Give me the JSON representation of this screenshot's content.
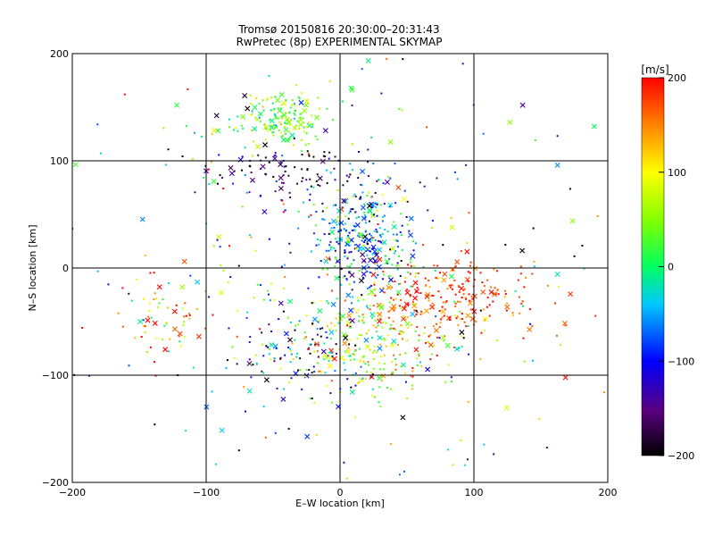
{
  "chart_data": {
    "type": "scatter",
    "title": "Tromsø 20150816 20:30:00–20:31:43",
    "subtitle": "RwPretec (8p) EXPERIMENTAL SKYMAP",
    "xlabel": "E–W location [km]",
    "ylabel": "N–S location [km]",
    "xlim": [
      -200,
      200
    ],
    "ylim": [
      -200,
      200
    ],
    "xticks": [
      -200,
      -100,
      0,
      100,
      200
    ],
    "yticks": [
      -200,
      -100,
      0,
      100,
      200
    ],
    "grid": true,
    "colorbar": {
      "label": "[m/s]",
      "range": [
        -200,
        200
      ],
      "ticks": [
        200,
        100,
        0,
        -100,
        -200
      ],
      "placement": "right"
    },
    "marker_types": [
      "cross",
      "dot"
    ],
    "clusters": [
      {
        "x": 15,
        "y": 25,
        "sx": 18,
        "sy": 28,
        "v_mean": -60,
        "v_sd": 70,
        "n": 320
      },
      {
        "x": -45,
        "y": 140,
        "sx": 20,
        "sy": 12,
        "v_mean": 40,
        "v_sd": 40,
        "n": 160
      },
      {
        "x": -40,
        "y": 90,
        "sx": 30,
        "sy": 15,
        "v_mean": -170,
        "v_sd": 40,
        "n": 90
      },
      {
        "x": 80,
        "y": -30,
        "sx": 35,
        "sy": 20,
        "v_mean": 180,
        "v_sd": 30,
        "n": 220
      },
      {
        "x": 30,
        "y": -70,
        "sx": 25,
        "sy": 25,
        "v_mean": 80,
        "v_sd": 60,
        "n": 200
      },
      {
        "x": -30,
        "y": -80,
        "sx": 25,
        "sy": 20,
        "v_mean": -60,
        "v_sd": 90,
        "n": 120
      },
      {
        "x": -130,
        "y": -40,
        "sx": 15,
        "sy": 20,
        "v_mean": 150,
        "v_sd": 80,
        "n": 60
      },
      {
        "x": 0,
        "y": 0,
        "sx": 110,
        "sy": 110,
        "v_mean": 0,
        "v_sd": 140,
        "n": 380
      }
    ]
  }
}
